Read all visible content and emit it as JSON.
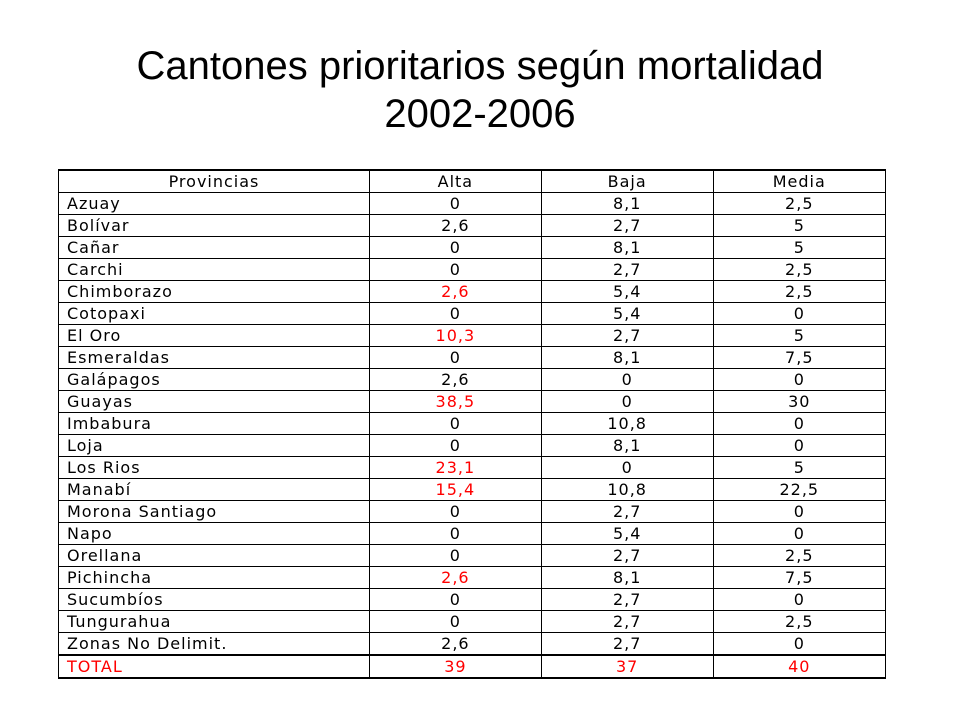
{
  "title": {
    "line1": "Cantones prioritarios según mortalidad",
    "line2": "2002-2006"
  },
  "table": {
    "headers": [
      "Provincias",
      "Alta",
      "Baja",
      "Media"
    ],
    "rows": [
      {
        "provincia": "Azuay",
        "alta": "0",
        "baja": "8,1",
        "media": "2,5",
        "alta_highlight": false
      },
      {
        "provincia": "Bolívar",
        "alta": "2,6",
        "baja": "2,7",
        "media": "5",
        "alta_highlight": false
      },
      {
        "provincia": "Cañar",
        "alta": "0",
        "baja": "8,1",
        "media": "5",
        "alta_highlight": false
      },
      {
        "provincia": "Carchi",
        "alta": "0",
        "baja": "2,7",
        "media": "2,5",
        "alta_highlight": false
      },
      {
        "provincia": "Chimborazo",
        "alta": "2,6",
        "baja": "5,4",
        "media": "2,5",
        "alta_highlight": true
      },
      {
        "provincia": "Cotopaxi",
        "alta": "0",
        "baja": "5,4",
        "media": "0",
        "alta_highlight": false
      },
      {
        "provincia": "El Oro",
        "alta": "10,3",
        "baja": "2,7",
        "media": "5",
        "alta_highlight": true
      },
      {
        "provincia": "Esmeraldas",
        "alta": "0",
        "baja": "8,1",
        "media": "7,5",
        "alta_highlight": false
      },
      {
        "provincia": "Galápagos",
        "alta": "2,6",
        "baja": "0",
        "media": "0",
        "alta_highlight": false
      },
      {
        "provincia": "Guayas",
        "alta": "38,5",
        "baja": "0",
        "media": "30",
        "alta_highlight": true
      },
      {
        "provincia": "Imbabura",
        "alta": "0",
        "baja": "10,8",
        "media": "0",
        "alta_highlight": false
      },
      {
        "provincia": "Loja",
        "alta": "0",
        "baja": "8,1",
        "media": "0",
        "alta_highlight": false
      },
      {
        "provincia": "Los Rios",
        "alta": "23,1",
        "baja": "0",
        "media": "5",
        "alta_highlight": true
      },
      {
        "provincia": "Manabí",
        "alta": "15,4",
        "baja": "10,8",
        "media": "22,5",
        "alta_highlight": true
      },
      {
        "provincia": "Morona Santiago",
        "alta": "0",
        "baja": "2,7",
        "media": "0",
        "alta_highlight": false
      },
      {
        "provincia": "Napo",
        "alta": "0",
        "baja": "5,4",
        "media": "0",
        "alta_highlight": false
      },
      {
        "provincia": "Orellana",
        "alta": "0",
        "baja": "2,7",
        "media": "2,5",
        "alta_highlight": false
      },
      {
        "provincia": "Pichincha",
        "alta": "2,6",
        "baja": "8,1",
        "media": "7,5",
        "alta_highlight": true
      },
      {
        "provincia": "Sucumbíos",
        "alta": "0",
        "baja": "2,7",
        "media": "0",
        "alta_highlight": false
      },
      {
        "provincia": "Tungurahua",
        "alta": "0",
        "baja": "2,7",
        "media": "2,5",
        "alta_highlight": false
      },
      {
        "provincia": "Zonas No Delimit.",
        "alta": "2,6",
        "baja": "2,7",
        "media": "0",
        "alta_highlight": false
      }
    ],
    "total": {
      "label": "TOTAL",
      "alta": "39",
      "baja": "37",
      "media": "40"
    }
  },
  "colors": {
    "highlight": "#ff0000",
    "text": "#000000",
    "background": "#ffffff"
  }
}
